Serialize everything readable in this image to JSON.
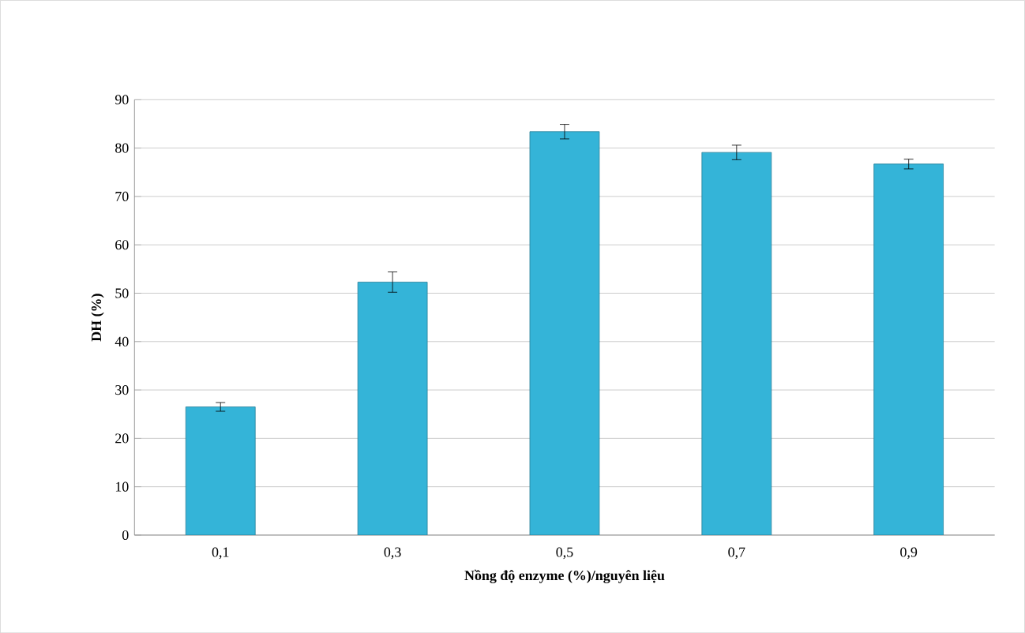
{
  "chart_data": {
    "type": "bar",
    "categories": [
      "0,1",
      "0,3",
      "0,5",
      "0,7",
      "0,9"
    ],
    "values": [
      26.5,
      52.3,
      83.4,
      79.1,
      76.7
    ],
    "errors": [
      0.9,
      2.1,
      1.5,
      1.5,
      1.0
    ],
    "color": "#34b4d8",
    "xlabel": "Nồng độ enzyme (%)/nguyên liệu",
    "ylabel": "DH (%)",
    "ylim": [
      0,
      90
    ],
    "yticks": [
      0,
      10,
      20,
      30,
      40,
      50,
      60,
      70,
      80,
      90
    ],
    "grid": "y"
  }
}
